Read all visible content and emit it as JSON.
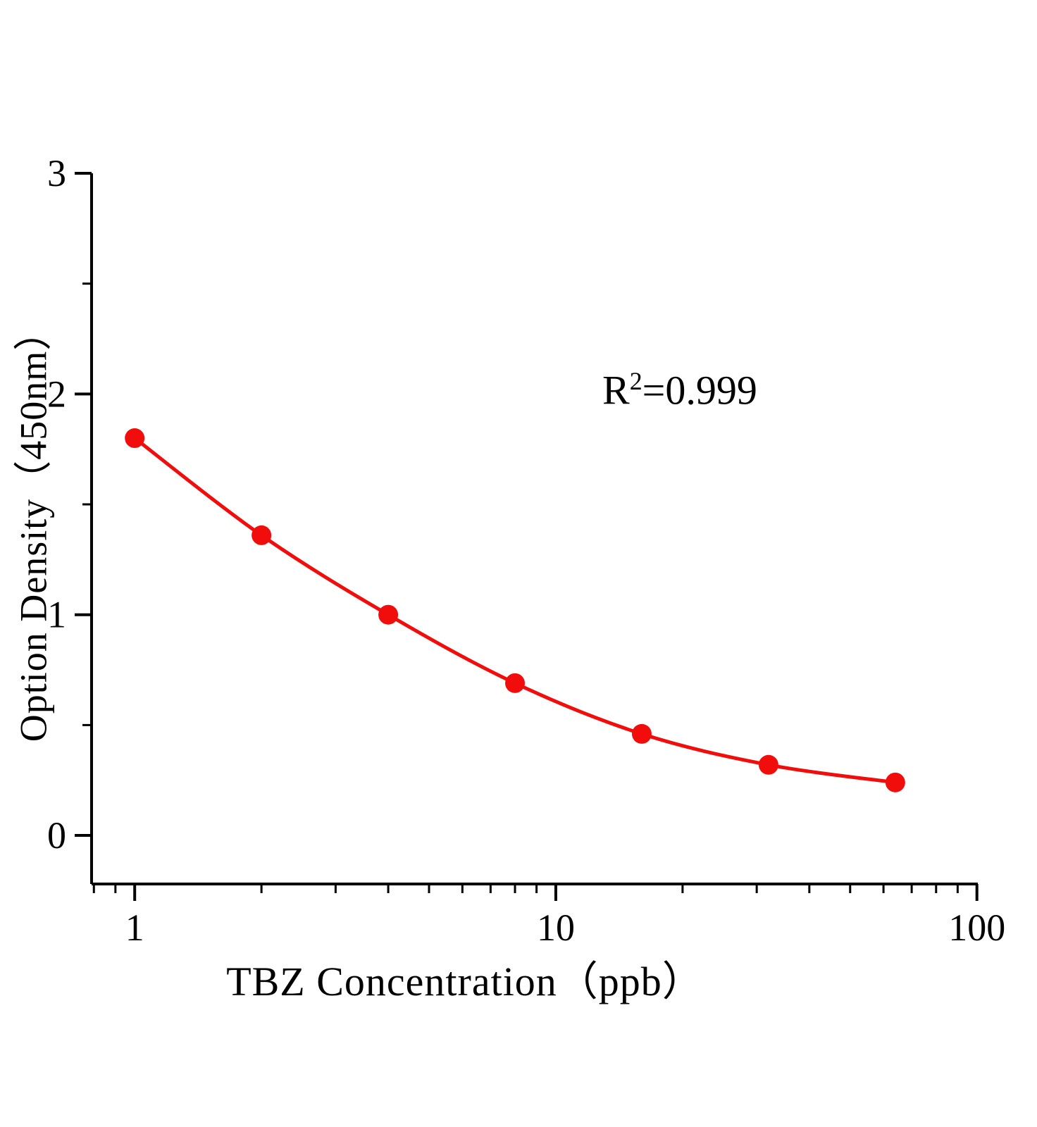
{
  "chart_data": {
    "type": "line",
    "x": [
      1,
      2,
      4,
      8,
      16,
      32,
      64
    ],
    "y": [
      1.8,
      1.36,
      1.0,
      0.69,
      0.46,
      0.32,
      0.24
    ],
    "title": "",
    "xlabel": "TBZ Concentration（ppb）",
    "ylabel": "Option Density（450nm）",
    "xscale": "log",
    "xlim": [
      0.79,
      100.5
    ],
    "ylim": [
      -0.22,
      3.0
    ],
    "xticks": {
      "values": [
        1,
        10,
        100
      ],
      "labels": [
        "1",
        "10",
        "100"
      ]
    },
    "yticks": {
      "values": [
        0,
        1,
        2,
        3
      ],
      "labels": [
        "0",
        "1",
        "2",
        "3"
      ]
    },
    "y_minor_step": 0.5,
    "grid": false,
    "legend": "none",
    "marker": "circle",
    "marker_radius": 14,
    "line_color": "#f20d0d",
    "point_color": "#f20d0d",
    "axis_color": "#000000",
    "annotation": {
      "base": "R",
      "sup": "2",
      "rest": "=0.999"
    }
  }
}
